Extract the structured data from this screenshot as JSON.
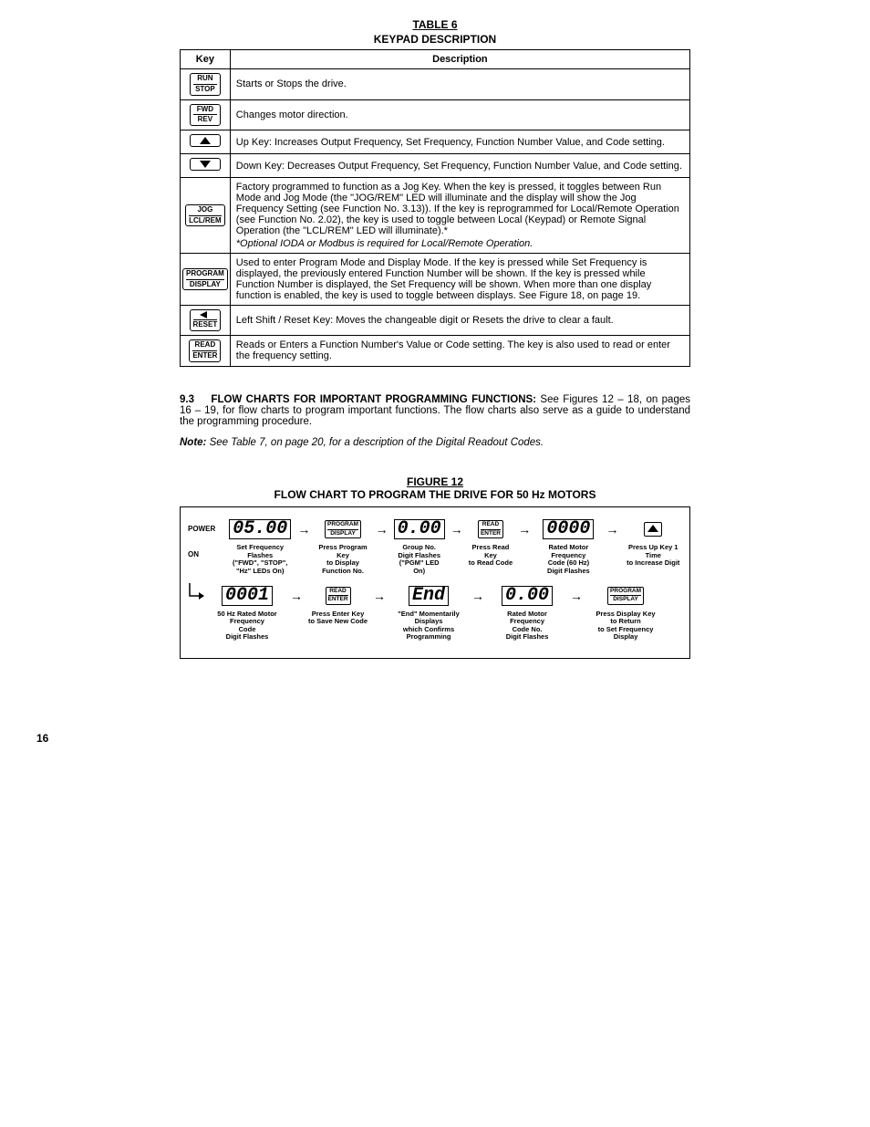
{
  "table": {
    "title": "TABLE 6",
    "subtitle": "KEYPAD DESCRIPTION",
    "headers": {
      "key": "Key",
      "desc": "Description"
    },
    "rows": [
      {
        "key_top": "RUN",
        "key_bot": "STOP",
        "desc": "Starts or Stops the drive."
      },
      {
        "key_top": "FWD",
        "key_bot": "REV",
        "desc": "Changes motor direction."
      },
      {
        "icon": "up",
        "desc": "Up Key: Increases Output Frequency, Set Frequency, Function Number Value, and Code setting."
      },
      {
        "icon": "down",
        "desc": "Down Key: Decreases Output Frequency, Set Frequency, Function Number Value, and Code setting."
      },
      {
        "key_top": "JOG",
        "key_bot": "LCL/REM",
        "desc": "Factory programmed to function as a Jog Key. When the key is pressed, it toggles between Run Mode and Jog Mode (the \"JOG/REM\" LED will illuminate and the display will show the Jog Frequency Setting (see Function No. 3.13)). If the key is reprogrammed for Local/Remote Operation (see Function No. 2.02), the key is used to toggle between Local (Keypad) or Remote Signal Operation (the \"LCL/REM\" LED will illuminate).*",
        "foot": "*Optional IODA or Modbus is required for Local/Remote Operation."
      },
      {
        "key_top": "PROGRAM",
        "key_bot": "DISPLAY",
        "desc": "Used to enter Program Mode and Display Mode.  If the key is pressed while Set Frequency is displayed, the previously entered Function Number will be shown.  If the key is pressed while Function Number is displayed, the Set Frequency will be shown.  When more than one display function is enabled, the key is used to toggle between displays.  See Figure 18, on page 19."
      },
      {
        "icon": "left",
        "key_bot": "RESET",
        "desc": "Left Shift / Reset Key: Moves the changeable digit or Resets the drive to clear a fault."
      },
      {
        "key_top": "READ",
        "key_bot": "ENTER",
        "desc": "Reads or Enters a Function Number's Value or Code setting.  The key is also used to read or enter the frequency setting."
      }
    ]
  },
  "section": {
    "num": "9.3",
    "heading": "FLOW CHARTS FOR IMPORTANT PROGRAMMING FUNCTIONS:",
    "body": " See Figures 12 – 18, on pages 16 – 19, for flow charts to program important functions. The flow charts also serve as a guide to understand the programming procedure.",
    "note_label": "Note:",
    "note_body": " See Table 7, on page 20, for a description of the Digital Readout Codes."
  },
  "figure": {
    "title": "FIGURE 12",
    "subtitle": "FLOW CHART TO PROGRAM THE DRIVE FOR 50 Hz MOTORS",
    "poweron": "POWER ON",
    "row1": [
      {
        "lcd": "05.00",
        "caption": "Set Frequency Flashes\n(\"FWD\", \"STOP\", \"Hz\" LEDs On)"
      },
      {
        "key_top": "PROGRAM",
        "key_bot": "DISPLAY",
        "caption": "Press Program Key\nto Display\nFunction No."
      },
      {
        "lcd": "0.00",
        "caption": "Group No.\nDigit Flashes\n(\"PGM\" LED On)"
      },
      {
        "key_top": "READ",
        "key_bot": "ENTER",
        "caption": "Press Read Key\nto Read Code"
      },
      {
        "lcd": "0000",
        "caption": "Rated Motor Frequency\nCode (60 Hz)\nDigit Flashes"
      },
      {
        "icon": "up",
        "caption": "Press Up Key 1 Time\nto Increase Digit"
      }
    ],
    "row2": [
      {
        "lcd": "0001",
        "caption": "50 Hz Rated Motor Frequency\nCode\nDigit Flashes"
      },
      {
        "key_top": "READ",
        "key_bot": "ENTER",
        "caption": "Press Enter Key\nto Save New Code"
      },
      {
        "lcd": "End",
        "caption": "\"End\" Momentarily Displays\nwhich Confirms Programming"
      },
      {
        "lcd": "0.00",
        "caption": "Rated Motor Frequency\nCode No.\nDigit Flashes"
      },
      {
        "key_top": "PROGRAM",
        "key_bot": "DISPLAY",
        "caption": "Press Display Key\nto Return\nto Set Frequency Display"
      }
    ]
  },
  "page_number": "16"
}
